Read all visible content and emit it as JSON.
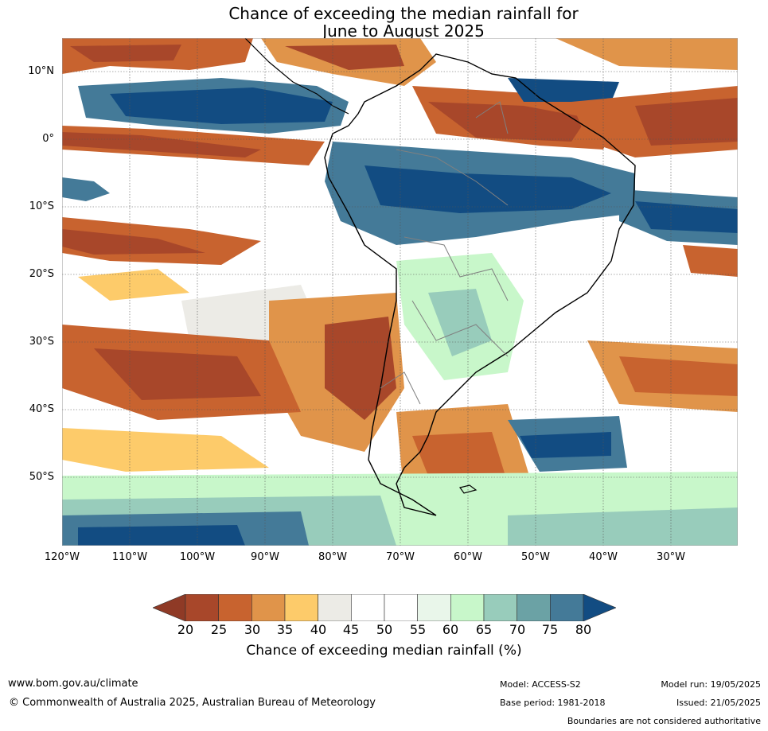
{
  "title": {
    "line1": "Chance of exceeding the median rainfall for",
    "line2": "June to August 2025"
  },
  "map": {
    "lat_labels": [
      "10°N",
      "0°",
      "10°S",
      "20°S",
      "30°S",
      "40°S",
      "50°S"
    ],
    "lon_labels": [
      "120°W",
      "110°W",
      "100°W",
      "90°W",
      "80°W",
      "70°W",
      "60°W",
      "50°W",
      "40°W",
      "30°W"
    ],
    "grid": true,
    "lon_range": [
      -120,
      -20
    ],
    "lat_range": [
      -60,
      15
    ]
  },
  "legend": {
    "ticks": [
      "20",
      "25",
      "30",
      "35",
      "40",
      "45",
      "50",
      "55",
      "60",
      "65",
      "70",
      "75",
      "80"
    ],
    "colors": [
      "#a8472a",
      "#c8632f",
      "#e0944a",
      "#fdcb6a",
      "#ecebe6",
      "#ffffff",
      "#ffffff",
      "#e9f6ea",
      "#c8f7ca",
      "#98ccbb",
      "#6ba2a5",
      "#447a98"
    ],
    "under_color": "#8f3a26",
    "over_color": "#124c82",
    "label": "Chance of exceeding median rainfall (%)"
  },
  "footer": {
    "website": "www.bom.gov.au/climate",
    "copyright": "© Commonwealth of Australia 2025, Australian Bureau of Meteorology",
    "model": "Model: ACCESS-S2",
    "base_period": "Base period: 1981-2018",
    "model_run": "Model run: 19/05/2025",
    "issued": "Issued: 21/05/2025",
    "disclaimer": "Boundaries are not considered authoritative"
  }
}
